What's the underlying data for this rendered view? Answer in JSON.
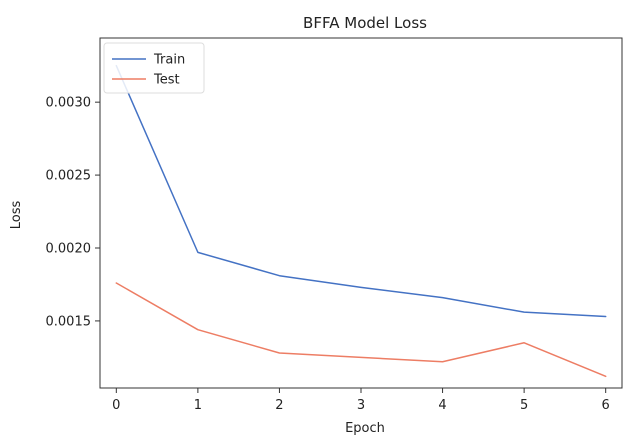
{
  "chart_data": {
    "type": "line",
    "title": "BFFA Model  Loss",
    "xlabel": "Epoch",
    "ylabel": "Loss",
    "x": [
      0,
      1,
      2,
      3,
      4,
      5,
      6
    ],
    "x_ticks": [
      "0",
      "1",
      "2",
      "3",
      "4",
      "5",
      "6"
    ],
    "y_ticks": [
      "0.0015",
      "0.0020",
      "0.0025",
      "0.0030"
    ],
    "y_tick_values": [
      0.0015,
      0.002,
      0.0025,
      0.003
    ],
    "xlim": [
      -0.2,
      6.2
    ],
    "ylim": [
      0.00104,
      0.00344
    ],
    "grid": false,
    "legend_position": "top-left",
    "series": [
      {
        "name": "Train",
        "color": "#4472c4",
        "values": [
          0.00325,
          0.00197,
          0.00181,
          0.00173,
          0.00166,
          0.00156,
          0.00153
        ]
      },
      {
        "name": "Test",
        "color": "#ed7d64",
        "values": [
          0.00176,
          0.00144,
          0.00128,
          0.00125,
          0.00122,
          0.00135,
          0.00112
        ]
      }
    ]
  }
}
